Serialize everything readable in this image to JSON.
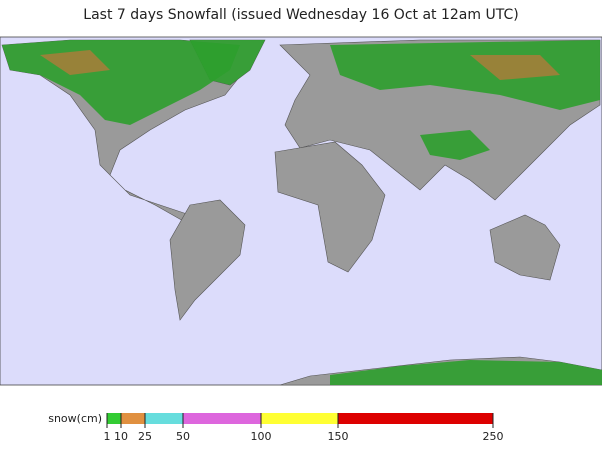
{
  "title": "Last 7 days Snowfall (issued Wednesday 16 Oct at 12am UTC)",
  "legend": {
    "label": "snow(cm)",
    "ticks": [
      1,
      10,
      25,
      50,
      100,
      150,
      250
    ],
    "colors": [
      "#33cc33",
      "#e09040",
      "#66dddd",
      "#dd66dd",
      "#ffff33",
      "#dd0000"
    ]
  }
}
